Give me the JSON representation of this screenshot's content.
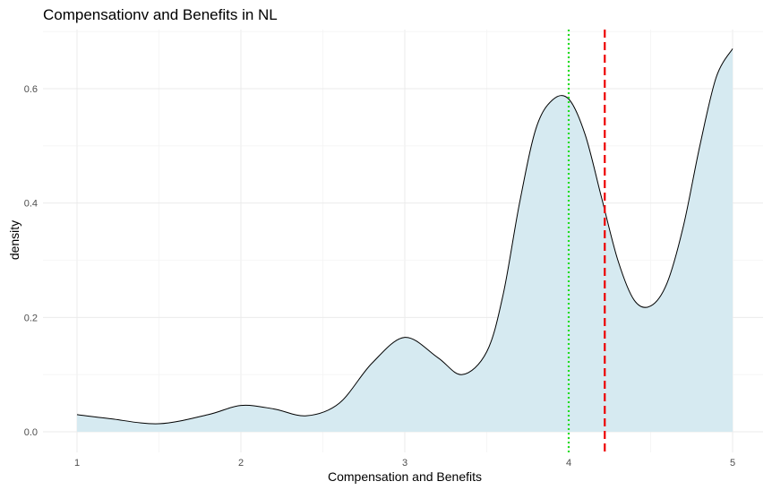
{
  "chart_data": {
    "type": "area",
    "title": "Compensationv and Benefits in  NL",
    "xlabel": "Compensation and Benefits",
    "ylabel": "density",
    "xlim": [
      1,
      5
    ],
    "ylim": [
      0,
      0.67
    ],
    "x_ticks": [
      1,
      2,
      3,
      4,
      5
    ],
    "x_tick_labels": [
      "1",
      "2",
      "3",
      "4",
      "5"
    ],
    "y_ticks": [
      0.0,
      0.2,
      0.4,
      0.6
    ],
    "y_tick_labels": [
      "0.0",
      "0.2",
      "0.4",
      "0.6"
    ],
    "grid": true,
    "legend": "none",
    "series": [
      {
        "x": [
          1.0,
          1.2,
          1.5,
          1.8,
          2.0,
          2.2,
          2.4,
          2.6,
          2.8,
          3.0,
          3.2,
          3.35,
          3.5,
          3.6,
          3.7,
          3.8,
          3.9,
          4.0,
          4.1,
          4.2,
          4.3,
          4.4,
          4.5,
          4.6,
          4.7,
          4.8,
          4.9,
          5.0
        ],
        "y": [
          0.03,
          0.023,
          0.014,
          0.03,
          0.046,
          0.04,
          0.028,
          0.05,
          0.12,
          0.165,
          0.13,
          0.1,
          0.14,
          0.24,
          0.4,
          0.53,
          0.58,
          0.582,
          0.52,
          0.41,
          0.3,
          0.23,
          0.22,
          0.26,
          0.36,
          0.5,
          0.62,
          0.67
        ],
        "fill_color": "#d6eaf1",
        "line_color": "#000000"
      }
    ],
    "vlines": [
      {
        "x": 4.0,
        "color": "#22dd22",
        "style": "dotted"
      },
      {
        "x": 4.22,
        "color": "#ee0000",
        "style": "dashed"
      }
    ]
  }
}
